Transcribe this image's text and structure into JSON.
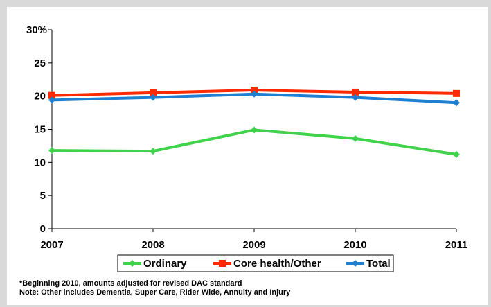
{
  "chart_data": {
    "type": "line",
    "title": "",
    "xlabel": "",
    "ylabel": "",
    "categories": [
      "2007",
      "2008",
      "2009",
      "2010",
      "2011"
    ],
    "y_ticks": [
      "0",
      "5",
      "10",
      "15",
      "20",
      "25",
      "30%"
    ],
    "ylim": [
      0,
      30
    ],
    "grid": false,
    "legend_position": "bottom",
    "series": [
      {
        "name": "Ordinary",
        "color": "#3fd24a",
        "marker": "diamond",
        "values": [
          11.8,
          11.7,
          14.9,
          13.6,
          11.2
        ]
      },
      {
        "name": "Core health/Other",
        "color": "#ff2a00",
        "marker": "square",
        "values": [
          20.1,
          20.5,
          20.9,
          20.6,
          20.4
        ]
      },
      {
        "name": "Total",
        "color": "#1f7fd0",
        "marker": "diamond",
        "values": [
          19.4,
          19.8,
          20.3,
          19.8,
          19.0
        ]
      }
    ]
  },
  "footnotes": {
    "line1": "*Beginning 2010, amounts adjusted for revised DAC standard",
    "line2": "Note: Other includes Dementia, Super Care, Rider Wide, Annuity and Injury"
  }
}
